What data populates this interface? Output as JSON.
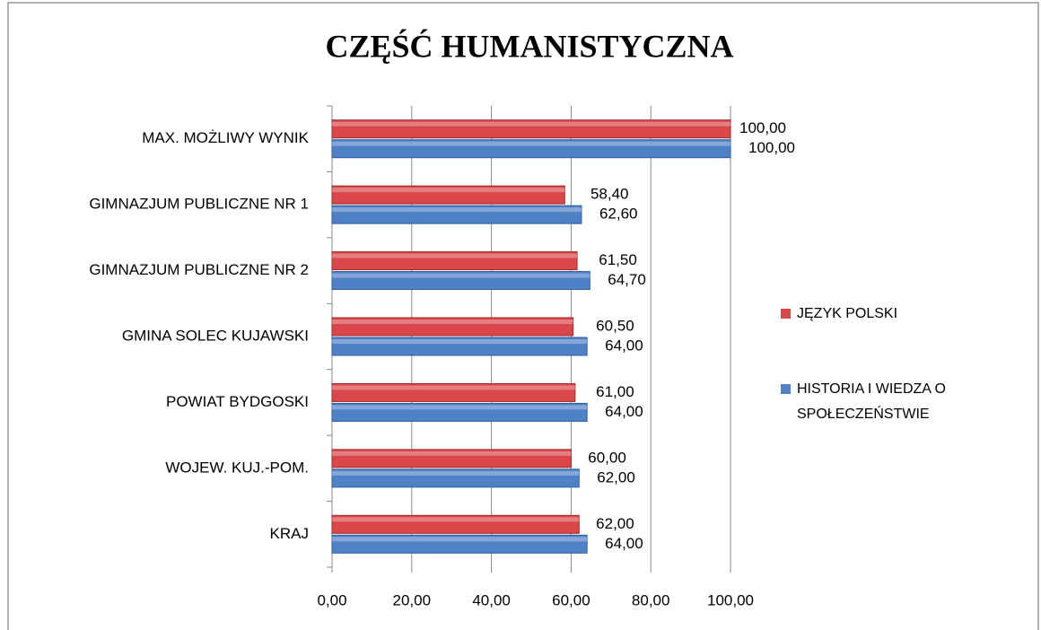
{
  "chart_data": {
    "type": "bar",
    "orientation": "horizontal",
    "title": "CZĘŚĆ HUMANISTYCZNA",
    "categories": [
      "MAX. MOŻLIWY WYNIK",
      "GIMNAZJUM  PUBLICZNE  NR 1",
      "GIMNAZJUM  PUBLICZNE  NR 2",
      "GMINA  SOLEC KUJAWSKI",
      "POWIAT BYDGOSKI",
      "WOJEW. KUJ.-POM.",
      "KRAJ"
    ],
    "series": [
      {
        "name": "JĘZYK POLSKI",
        "color": "#d9474a",
        "values": [
          100,
          58.4,
          61.5,
          60.5,
          61,
          60,
          62
        ],
        "value_labels": [
          "100,00",
          "58,40",
          "61,50",
          "60,50",
          "61,00",
          "60,00",
          "62,00"
        ]
      },
      {
        "name": "HISTORIA I WIEDZA O SPOŁECZEŃSTWIE",
        "color": "#4f81c7",
        "values": [
          100,
          62.6,
          64.7,
          64,
          64,
          62,
          64
        ],
        "value_labels": [
          "100,00",
          "62,60",
          "64,70",
          "64,00",
          "64,00",
          "62,00",
          "64,00"
        ]
      }
    ],
    "xlim": [
      0,
      100
    ],
    "xticks": [
      {
        "value": 0,
        "label": "0,00"
      },
      {
        "value": 20,
        "label": "20,00"
      },
      {
        "value": 40,
        "label": "40,00"
      },
      {
        "value": 60,
        "label": "60,00"
      },
      {
        "value": 80,
        "label": "80,00"
      },
      {
        "value": 100,
        "label": "100,00"
      }
    ],
    "grid": true,
    "legend": "right"
  }
}
